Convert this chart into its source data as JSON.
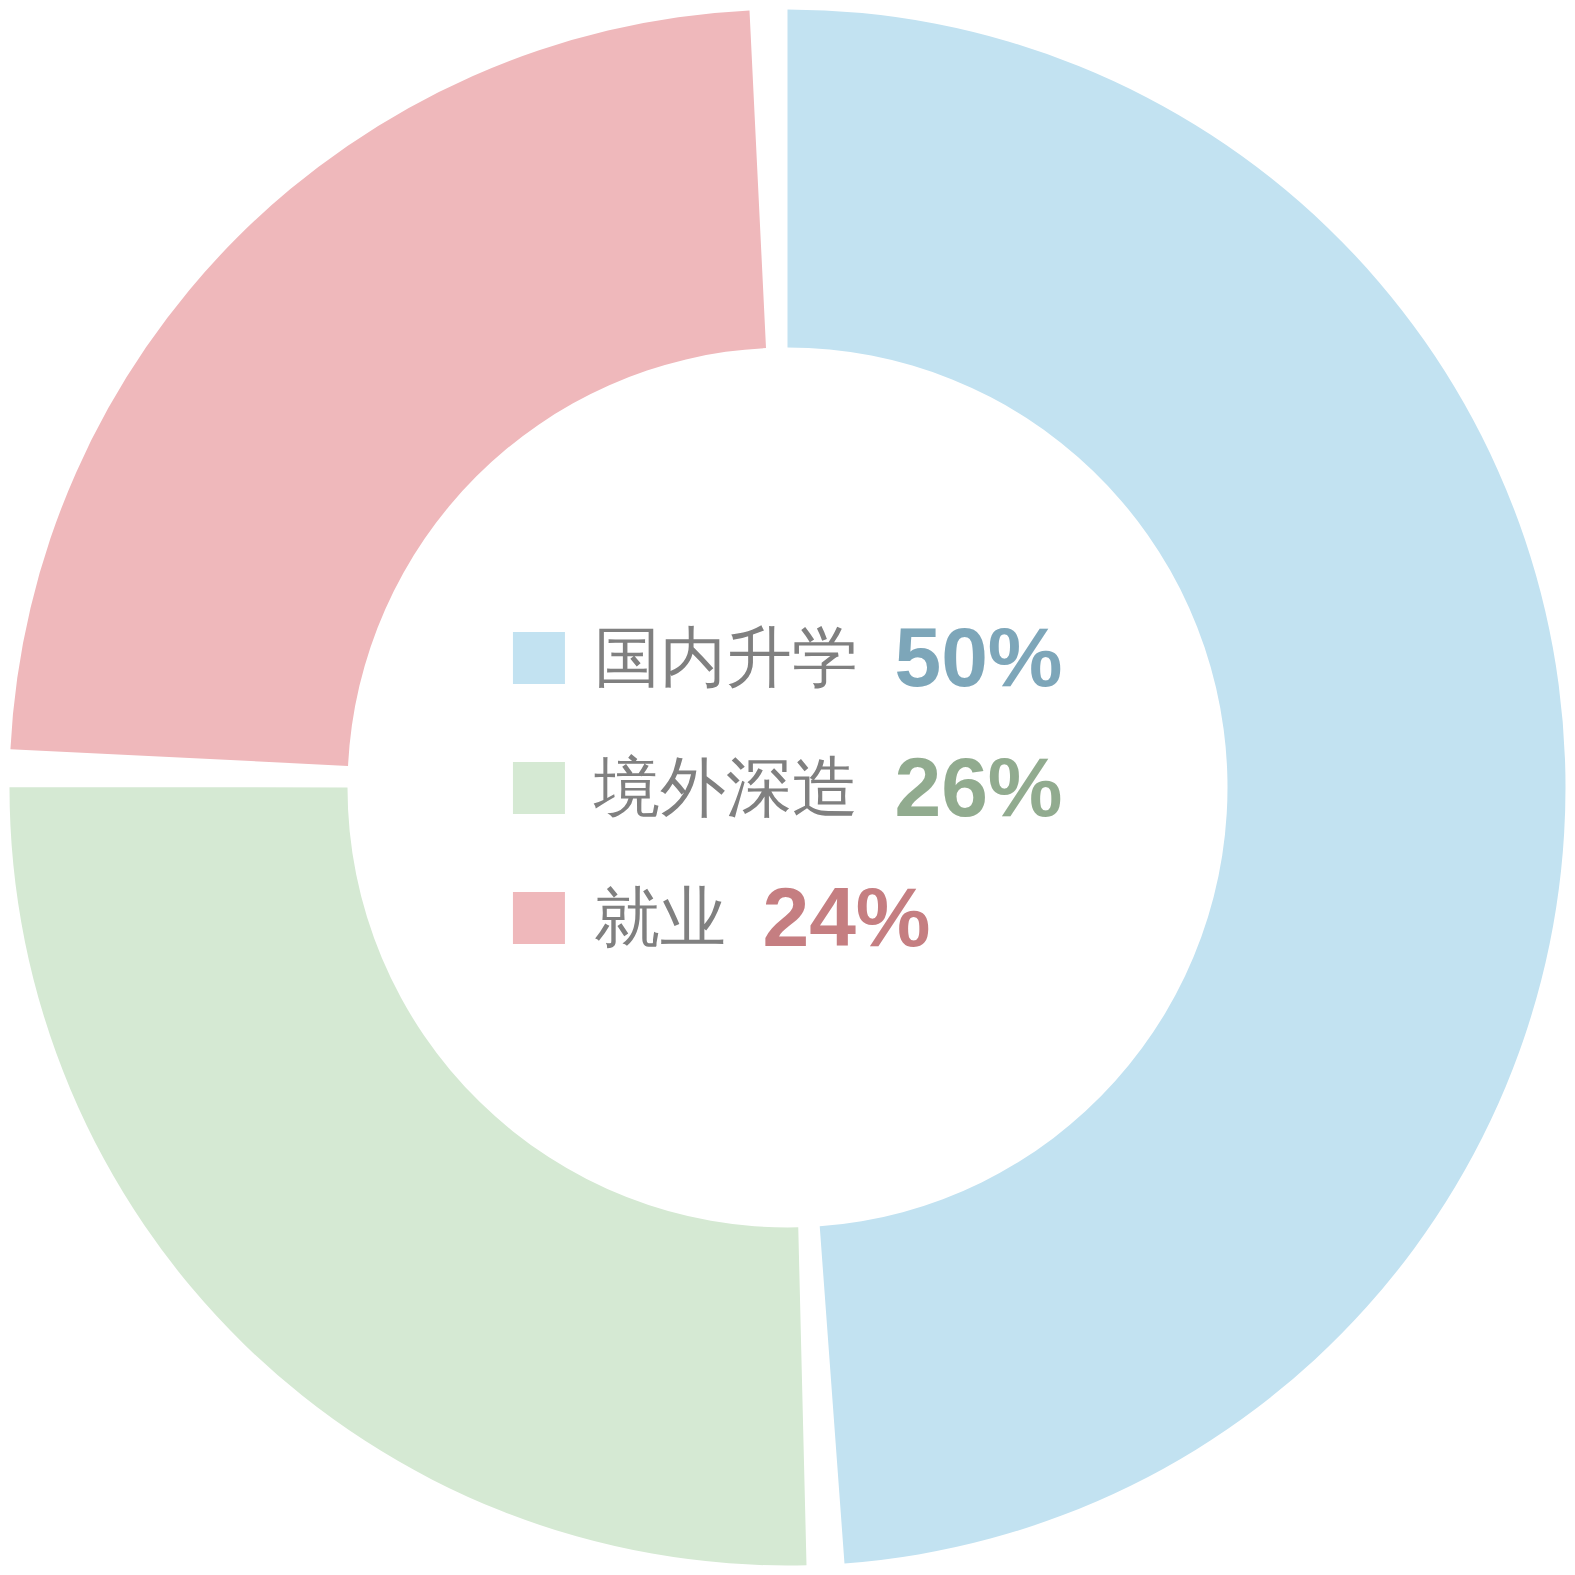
{
  "chart_data": {
    "type": "donut",
    "categories": [
      "国内升学",
      "境外深造",
      "就业"
    ],
    "values": [
      50,
      26,
      24
    ],
    "colors": [
      "#c2e2f1",
      "#d5e9d3",
      "#efb8bb"
    ],
    "legend": "center",
    "value_labels": [
      "50%",
      "26%",
      "24%"
    ]
  }
}
